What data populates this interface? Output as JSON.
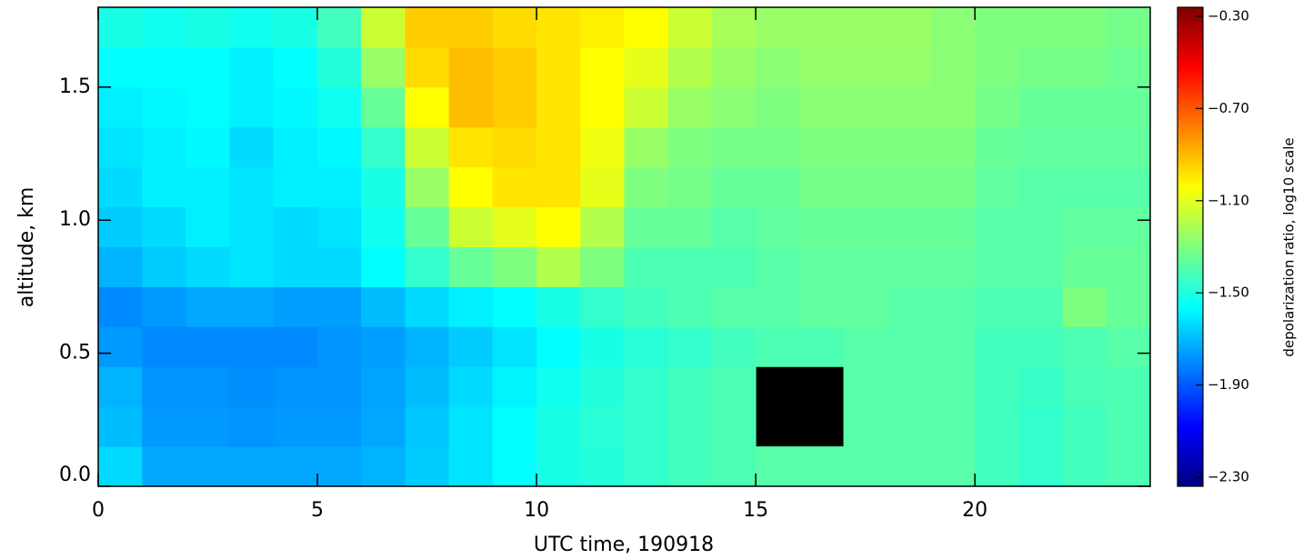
{
  "chart_data": {
    "type": "heatmap",
    "x_label": "UTC time, 190918",
    "y_label": "altitude, km",
    "colorbar_label": "depolarization ratio, log10 scale",
    "colormap": "jet",
    "xlim": [
      0,
      24
    ],
    "xticks": [
      0,
      5,
      10,
      15,
      20
    ],
    "ylim": [
      0,
      1.8
    ],
    "yticks": [
      {
        "value": 0,
        "label": "0.0"
      },
      0.5,
      {
        "value": 1,
        "label": "1.0"
      },
      1.5
    ],
    "clim": [
      -2.3,
      -0.3
    ],
    "cticks": [
      {
        "value": -2.3,
        "label": "−2.30"
      },
      {
        "value": -1.9,
        "label": "−1.90"
      },
      {
        "value": -1.5,
        "label": "−1.50"
      },
      {
        "value": -1.1,
        "label": "−1.10"
      },
      {
        "value": -0.7,
        "label": "−0.70"
      },
      {
        "value": -0.3,
        "label": "−0.30"
      }
    ],
    "xbins": [
      0,
      1,
      2,
      3,
      4,
      5,
      6,
      7,
      8,
      9,
      10,
      11,
      12,
      13,
      14,
      15,
      16,
      17,
      18,
      19,
      20,
      21,
      22,
      23,
      24
    ],
    "ybins": [
      0,
      0.15,
      0.3,
      0.45,
      0.6,
      0.75,
      0.9,
      1.05,
      1.2,
      1.35,
      1.5,
      1.65,
      1.8
    ],
    "z": [
      [
        -1.62,
        -1.72,
        -1.72,
        -1.72,
        -1.72,
        -1.72,
        -1.7,
        -1.65,
        -1.6,
        -1.55,
        -1.5,
        -1.48,
        -1.45,
        -1.42,
        -1.4,
        -1.38,
        -1.38,
        -1.38,
        -1.38,
        -1.38,
        -1.42,
        -1.45,
        -1.42,
        -1.4
      ],
      [
        -1.68,
        -1.75,
        -1.75,
        -1.76,
        -1.75,
        -1.75,
        -1.72,
        -1.66,
        -1.6,
        -1.55,
        -1.5,
        -1.47,
        -1.45,
        -1.42,
        -1.4,
        null,
        null,
        -1.38,
        -1.38,
        -1.38,
        -1.42,
        -1.45,
        -1.42,
        -1.4
      ],
      [
        -1.7,
        -1.76,
        -1.76,
        -1.77,
        -1.76,
        -1.76,
        -1.73,
        -1.68,
        -1.62,
        -1.57,
        -1.52,
        -1.48,
        -1.45,
        -1.42,
        -1.4,
        null,
        null,
        -1.38,
        -1.38,
        -1.38,
        -1.42,
        -1.44,
        -1.41,
        -1.4
      ],
      [
        -1.75,
        -1.78,
        -1.78,
        -1.78,
        -1.78,
        -1.76,
        -1.74,
        -1.7,
        -1.65,
        -1.6,
        -1.55,
        -1.5,
        -1.47,
        -1.45,
        -1.42,
        -1.4,
        -1.4,
        -1.38,
        -1.38,
        -1.38,
        -1.42,
        -1.42,
        -1.4,
        -1.38
      ],
      [
        -1.78,
        -1.75,
        -1.72,
        -1.72,
        -1.74,
        -1.74,
        -1.68,
        -1.62,
        -1.58,
        -1.55,
        -1.5,
        -1.45,
        -1.42,
        -1.4,
        -1.38,
        -1.38,
        -1.36,
        -1.36,
        -1.38,
        -1.38,
        -1.4,
        -1.4,
        -1.3,
        -1.35
      ],
      [
        -1.7,
        -1.65,
        -1.62,
        -1.6,
        -1.62,
        -1.62,
        -1.55,
        -1.45,
        -1.35,
        -1.3,
        -1.2,
        -1.3,
        -1.4,
        -1.4,
        -1.4,
        -1.38,
        -1.36,
        -1.36,
        -1.36,
        -1.36,
        -1.38,
        -1.38,
        -1.35,
        -1.35
      ],
      [
        -1.65,
        -1.62,
        -1.58,
        -1.6,
        -1.62,
        -1.6,
        -1.52,
        -1.35,
        -1.15,
        -1.1,
        -1.05,
        -1.2,
        -1.35,
        -1.35,
        -1.38,
        -1.36,
        -1.35,
        -1.35,
        -1.35,
        -1.35,
        -1.38,
        -1.38,
        -1.36,
        -1.36
      ],
      [
        -1.62,
        -1.58,
        -1.58,
        -1.6,
        -1.58,
        -1.58,
        -1.5,
        -1.25,
        -1.05,
        -1.0,
        -1.0,
        -1.1,
        -1.3,
        -1.32,
        -1.35,
        -1.35,
        -1.32,
        -1.32,
        -1.32,
        -1.32,
        -1.36,
        -1.38,
        -1.38,
        -1.38
      ],
      [
        -1.6,
        -1.58,
        -1.56,
        -1.62,
        -1.58,
        -1.56,
        -1.45,
        -1.15,
        -1.0,
        -0.98,
        -1.0,
        -1.08,
        -1.25,
        -1.3,
        -1.32,
        -1.32,
        -1.3,
        -1.3,
        -1.3,
        -1.3,
        -1.35,
        -1.36,
        -1.36,
        -1.36
      ],
      [
        -1.58,
        -1.56,
        -1.55,
        -1.58,
        -1.56,
        -1.52,
        -1.35,
        -1.05,
        -0.92,
        -0.95,
        -1.0,
        -1.05,
        -1.15,
        -1.25,
        -1.28,
        -1.3,
        -1.28,
        -1.28,
        -1.28,
        -1.28,
        -1.32,
        -1.35,
        -1.35,
        -1.35
      ],
      [
        -1.55,
        -1.55,
        -1.55,
        -1.58,
        -1.55,
        -1.48,
        -1.25,
        -0.98,
        -0.92,
        -0.95,
        -1.0,
        -1.05,
        -1.1,
        -1.2,
        -1.25,
        -1.28,
        -1.26,
        -1.26,
        -1.26,
        -1.28,
        -1.3,
        -1.32,
        -1.32,
        -1.34
      ],
      [
        -1.5,
        -1.52,
        -1.5,
        -1.52,
        -1.5,
        -1.42,
        -1.15,
        -0.95,
        -0.95,
        -0.98,
        -1.0,
        -1.02,
        -1.05,
        -1.15,
        -1.22,
        -1.25,
        -1.25,
        -1.25,
        -1.25,
        -1.28,
        -1.3,
        -1.3,
        -1.3,
        -1.32
      ]
    ]
  }
}
